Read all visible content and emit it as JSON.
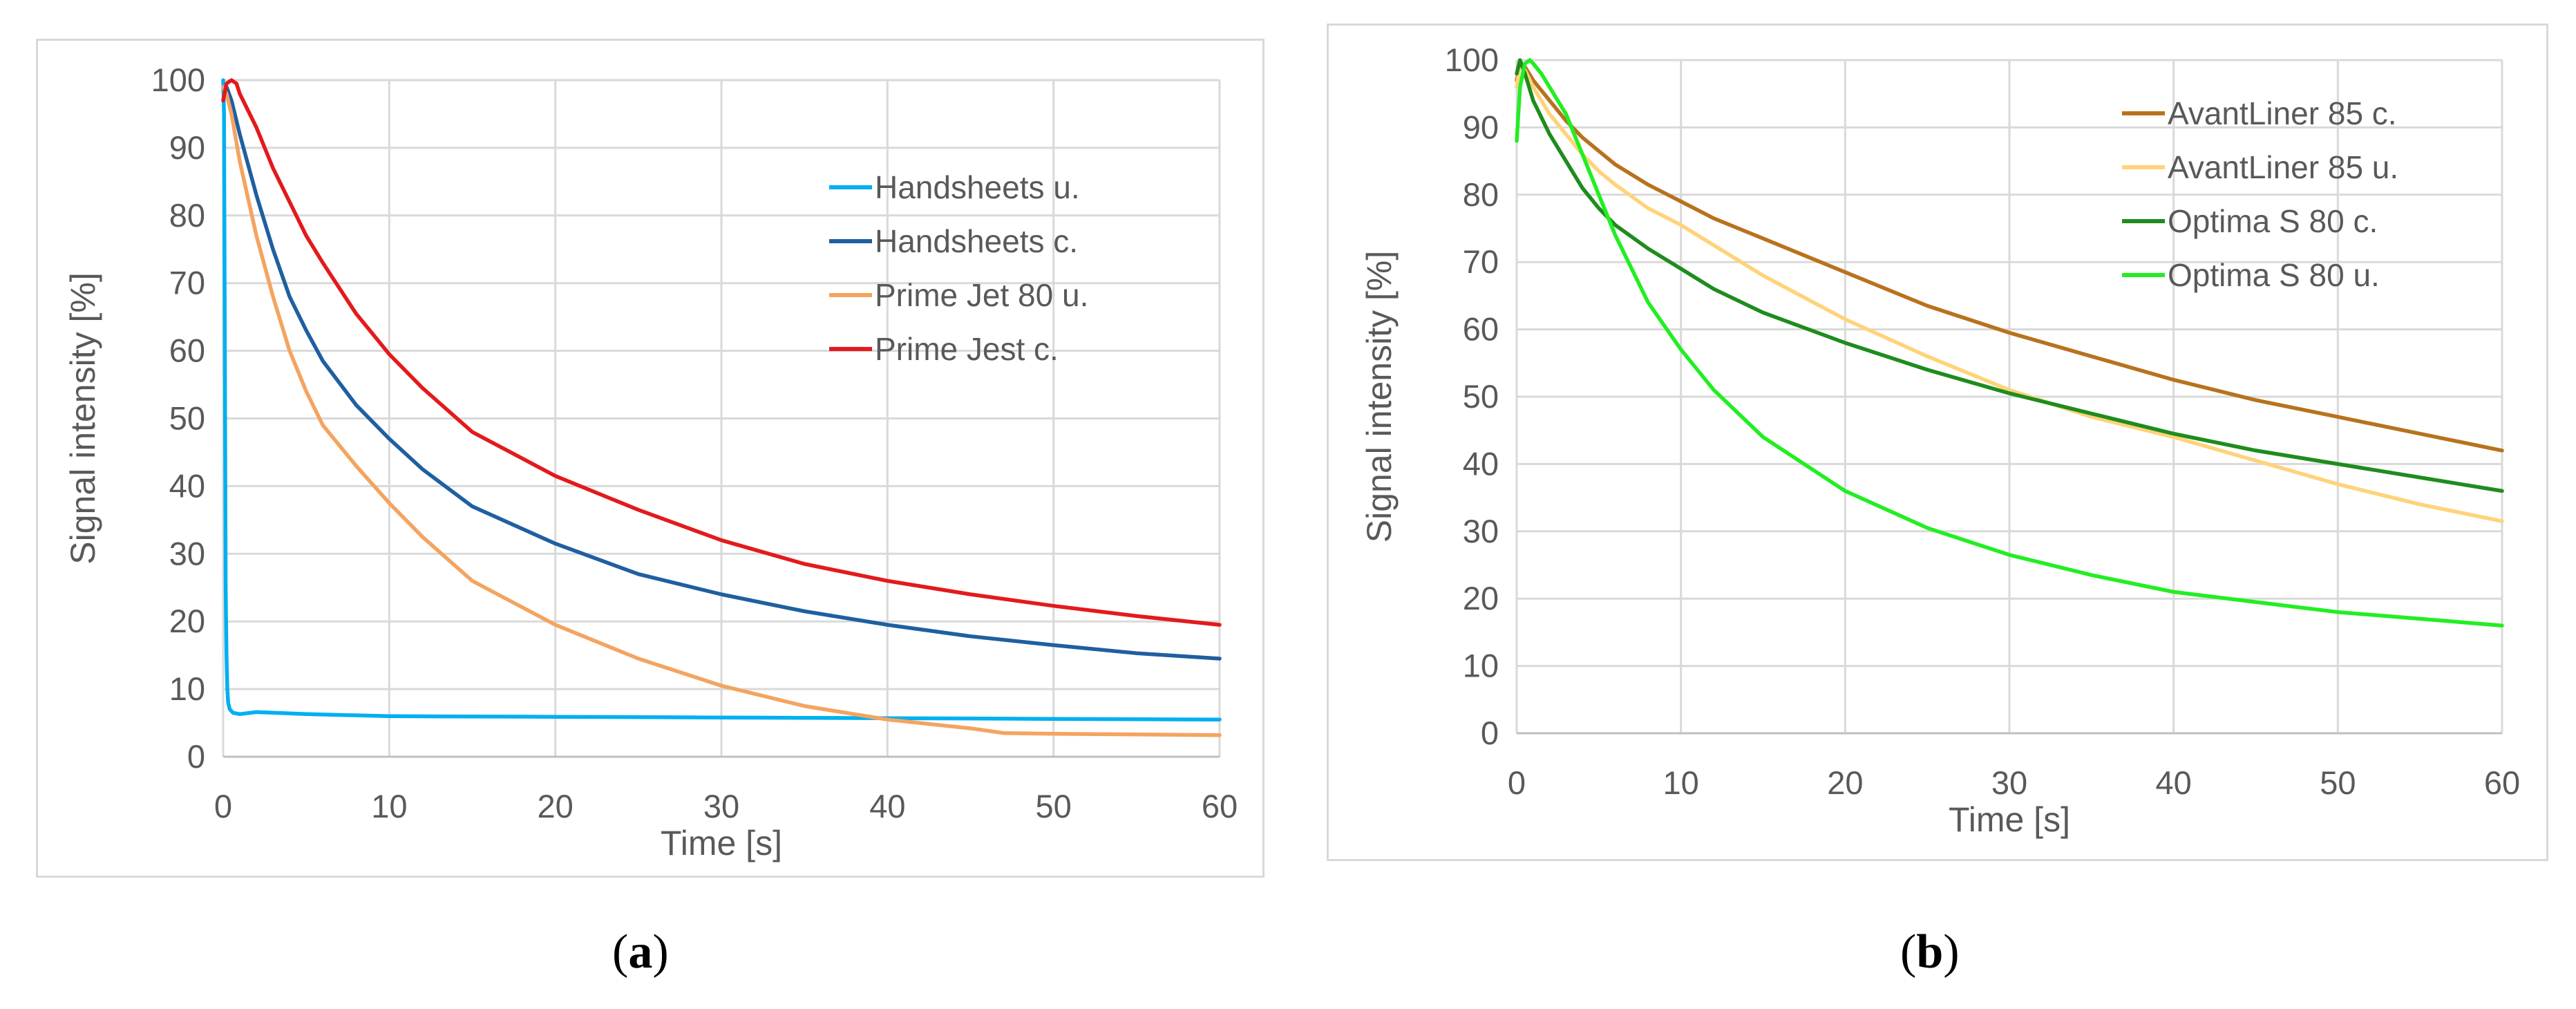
{
  "captions": {
    "a_open": "(",
    "a_letter": "a",
    "a_close": ")",
    "b_open": "(",
    "b_letter": "b",
    "b_close": ")"
  },
  "chart_data": [
    {
      "type": "line",
      "panel": "a",
      "title": "",
      "xlabel": "Time [s]",
      "ylabel": "Signal intensity  [%]",
      "xlim": [
        0,
        60
      ],
      "ylim": [
        0,
        100
      ],
      "xticks": [
        0,
        10,
        20,
        30,
        40,
        50,
        60
      ],
      "yticks": [
        0,
        10,
        20,
        30,
        40,
        50,
        60,
        70,
        80,
        90,
        100
      ],
      "grid": true,
      "legend": "upper-right inside",
      "series": [
        {
          "name": "Handsheets u.",
          "color": "#00b0f0",
          "x": [
            0,
            0.05,
            0.1,
            0.15,
            0.2,
            0.25,
            0.3,
            0.4,
            0.6,
            1,
            2,
            5,
            10,
            20,
            30,
            40,
            50,
            60
          ],
          "y": [
            100,
            95,
            60,
            25,
            15,
            10,
            8,
            7,
            6.5,
            6.3,
            6.6,
            6.3,
            6.0,
            5.9,
            5.8,
            5.7,
            5.6,
            5.5
          ]
        },
        {
          "name": "Handsheets c.",
          "color": "#1f5fa0",
          "x": [
            0,
            0.2,
            0.5,
            1,
            2,
            3,
            4,
            5,
            6,
            8,
            10,
            12,
            15,
            20,
            25,
            30,
            35,
            40,
            45,
            50,
            55,
            60
          ],
          "y": [
            97,
            99,
            97,
            92,
            83,
            75,
            68,
            63,
            58.5,
            52,
            47,
            42.5,
            37,
            31.5,
            27,
            24,
            21.5,
            19.5,
            17.8,
            16.5,
            15.3,
            14.5
          ]
        },
        {
          "name": "Prime Jet 80 u.",
          "color": "#f4a460",
          "x": [
            0,
            0.2,
            0.5,
            1,
            2,
            3,
            4,
            5,
            6,
            8,
            10,
            12,
            15,
            20,
            25,
            30,
            35,
            40,
            45,
            47,
            50,
            55,
            60
          ],
          "y": [
            99,
            98,
            95,
            88,
            77,
            68,
            60,
            54,
            49,
            43,
            37.5,
            32.5,
            26,
            19.5,
            14.5,
            10.5,
            7.5,
            5.5,
            4.2,
            3.5,
            3.4,
            3.3,
            3.2
          ]
        },
        {
          "name": "Prime Jest c.",
          "color": "#e31a1c",
          "x": [
            0,
            0.2,
            0.5,
            0.8,
            1,
            2,
            3,
            4,
            5,
            6,
            8,
            10,
            12,
            15,
            20,
            25,
            30,
            35,
            40,
            45,
            50,
            55,
            60
          ],
          "y": [
            97,
            99.5,
            100,
            99.5,
            98,
            93,
            87,
            82,
            77,
            73,
            65.5,
            59.5,
            54.5,
            48,
            41.5,
            36.5,
            32,
            28.5,
            26,
            24,
            22.3,
            20.8,
            19.5
          ]
        }
      ]
    },
    {
      "type": "line",
      "panel": "b",
      "title": "",
      "xlabel": "Time [s]",
      "ylabel": "Signal intensity [%]",
      "xlim": [
        0,
        60
      ],
      "ylim": [
        0,
        100
      ],
      "xticks": [
        0,
        10,
        20,
        30,
        40,
        50,
        60
      ],
      "yticks": [
        0,
        10,
        20,
        30,
        40,
        50,
        60,
        70,
        80,
        90,
        100
      ],
      "grid": true,
      "legend": "upper-right inside",
      "series": [
        {
          "name": "AvantLiner 85 c.",
          "color": "#b8721e",
          "x": [
            0,
            0.2,
            0.5,
            1,
            2,
            3,
            4,
            5,
            6,
            8,
            10,
            12,
            15,
            20,
            25,
            30,
            35,
            40,
            45,
            50,
            55,
            60
          ],
          "y": [
            97,
            99.5,
            99,
            97,
            94,
            91,
            88.5,
            86.5,
            84.5,
            81.5,
            79,
            76.5,
            73.5,
            68.5,
            63.5,
            59.5,
            56,
            52.5,
            49.5,
            47,
            44.5,
            42
          ]
        },
        {
          "name": "AvantLiner 85 u.",
          "color": "#ffd37a",
          "x": [
            0,
            0.2,
            0.5,
            1,
            2,
            3,
            4,
            5,
            6,
            8,
            10,
            12,
            15,
            20,
            25,
            30,
            35,
            40,
            45,
            50,
            55,
            60
          ],
          "y": [
            96,
            99.5,
            98.5,
            96,
            92,
            89,
            86,
            83.5,
            81.5,
            78,
            75.5,
            72.5,
            68,
            61.5,
            56,
            51,
            47,
            44,
            40.5,
            37,
            34,
            31.5
          ]
        },
        {
          "name": "Optima S 80 c.",
          "color": "#1e8c1e",
          "x": [
            0,
            0.2,
            0.5,
            1,
            2,
            3,
            4,
            5,
            6,
            8,
            10,
            12,
            15,
            20,
            25,
            30,
            35,
            40,
            45,
            50,
            55,
            60
          ],
          "y": [
            98,
            100,
            98,
            94,
            89,
            85,
            81,
            78,
            75.5,
            72,
            69,
            66,
            62.5,
            58,
            54,
            50.5,
            47.5,
            44.5,
            42,
            40,
            38,
            36
          ]
        },
        {
          "name": "Optima S 80 u.",
          "color": "#22ee22",
          "x": [
            0,
            0.2,
            0.5,
            0.8,
            1,
            1.5,
            2,
            3,
            4,
            5,
            6,
            7,
            8,
            10,
            12,
            15,
            20,
            25,
            30,
            35,
            40,
            45,
            50,
            55,
            60
          ],
          "y": [
            88,
            96,
            99.5,
            100,
            99.5,
            98,
            96,
            92,
            86,
            80,
            74,
            69,
            64,
            57,
            51,
            44,
            36,
            30.5,
            26.5,
            23.5,
            21,
            19.5,
            18,
            17,
            16
          ]
        }
      ]
    }
  ]
}
